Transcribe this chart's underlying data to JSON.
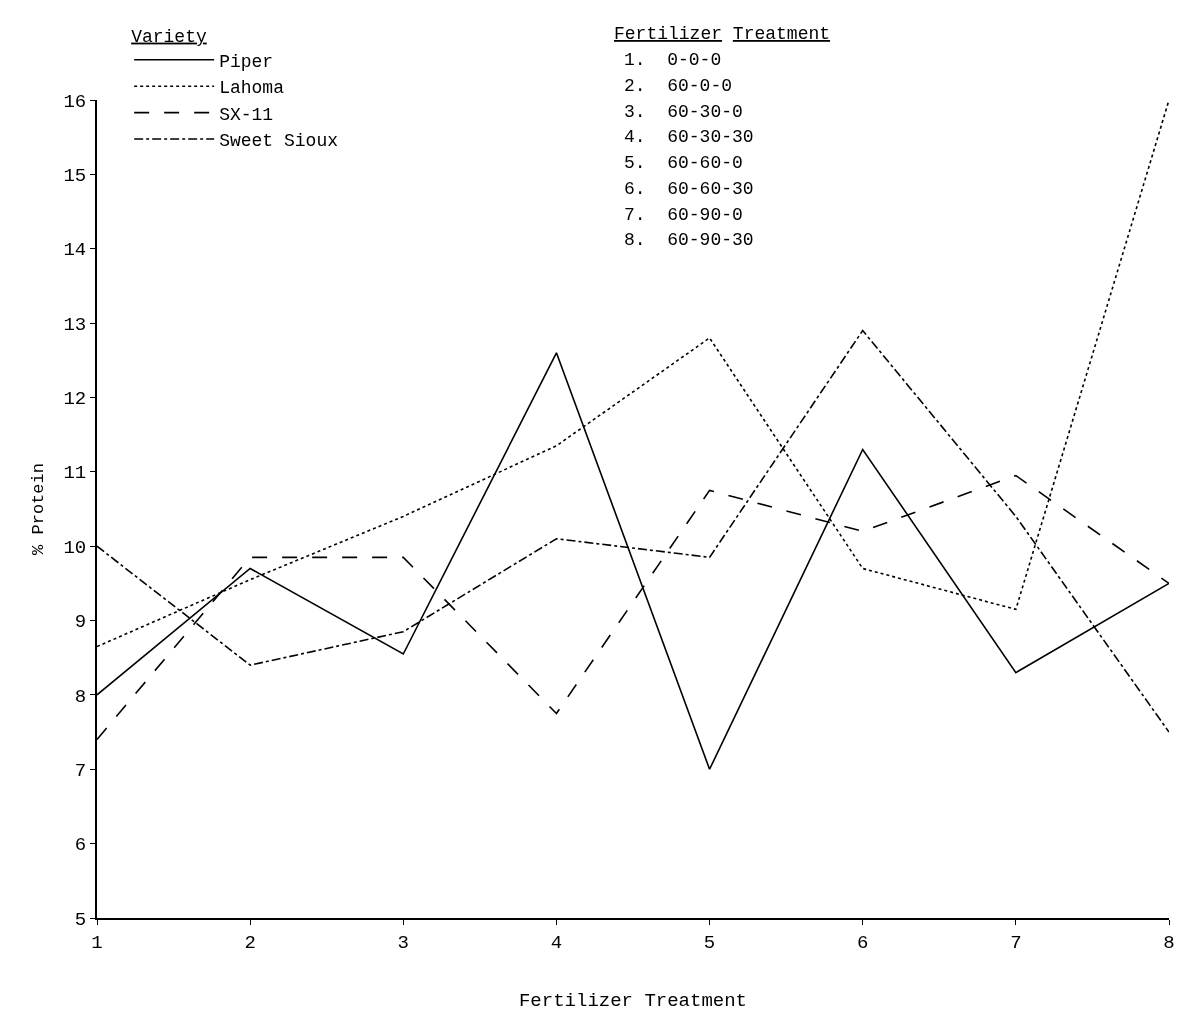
{
  "chart_data": {
    "type": "line",
    "xlabel": "Fertilizer Treatment",
    "ylabel": "% Protein",
    "legend_title": "Variety",
    "x": [
      1,
      2,
      3,
      4,
      5,
      6,
      7,
      8
    ],
    "series": [
      {
        "name": "Piper",
        "color": "#000000",
        "line_style": "solid",
        "values": [
          8.0,
          9.7,
          8.55,
          12.6,
          7.0,
          11.3,
          8.3,
          9.5
        ]
      },
      {
        "name": "Lahoma",
        "color": "#000000",
        "line_style": "dotted",
        "values": [
          8.65,
          9.55,
          10.4,
          11.35,
          12.8,
          9.7,
          9.15,
          16.0
        ]
      },
      {
        "name": "SX-11",
        "color": "#000000",
        "line_style": "dashed",
        "values": [
          7.4,
          9.85,
          9.85,
          7.75,
          10.75,
          10.2,
          10.95,
          9.5
        ]
      },
      {
        "name": "Sweet Sioux",
        "color": "#000000",
        "line_style": "dashdot",
        "values": [
          10.0,
          8.4,
          8.85,
          10.1,
          9.85,
          12.9,
          10.4,
          7.5
        ]
      }
    ],
    "xlim": [
      1,
      8
    ],
    "xticks": [
      1,
      2,
      3,
      4,
      5,
      6,
      7,
      8
    ],
    "ylim": [
      5,
      16
    ],
    "yticks": [
      5,
      6,
      7,
      8,
      9,
      10,
      11,
      12,
      13,
      14,
      15,
      16
    ],
    "legend": "top left",
    "marker": "none",
    "annotations": [
      "Fertilizer Treatment",
      "1.  0-0-0",
      "2.  60-0-0",
      "3.  60-30-0",
      "4.  60-30-30",
      "5.  60-60-0",
      "6.  60-60-30",
      "7.  60-90-0",
      "8.  60-90-30"
    ]
  }
}
